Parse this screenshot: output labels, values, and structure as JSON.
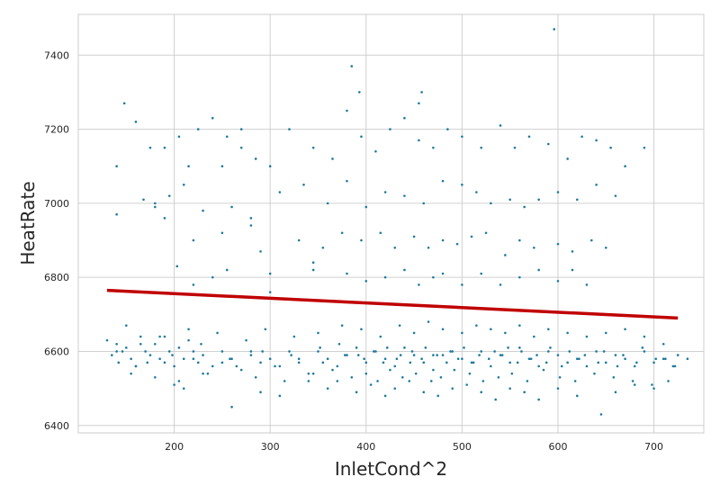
{
  "chart_data": {
    "type": "scatter",
    "title": "",
    "xlabel": "InletCond^2",
    "ylabel": "HeatRate",
    "xlim": [
      100,
      752
    ],
    "ylim": [
      6380,
      7510
    ],
    "xticks": [
      200,
      300,
      400,
      500,
      600,
      700
    ],
    "yticks": [
      6400,
      6600,
      6800,
      7000,
      7200,
      7400
    ],
    "grid": true,
    "background": "#eaeaf2",
    "colors": {
      "points": "#1d7a9e",
      "fit_line": "#c00000",
      "grid": "#d0d0d0",
      "frame": "#cccccc"
    },
    "series": [
      {
        "type": "scatter",
        "x": [
          130,
          135,
          140,
          142,
          146,
          150,
          155,
          160,
          165,
          170,
          175,
          180,
          185,
          190,
          195,
          200,
          205,
          210,
          215,
          220,
          225,
          230,
          240,
          250,
          260,
          270,
          280,
          290,
          300,
          310,
          320,
          330,
          340,
          350,
          360,
          370,
          380,
          390,
          400,
          410,
          420,
          430,
          440,
          450,
          460,
          470,
          480,
          490,
          500,
          510,
          520,
          530,
          540,
          550,
          560,
          570,
          580,
          590,
          600,
          610,
          620,
          630,
          640,
          650,
          660,
          670,
          680,
          690,
          700,
          710,
          720,
          725,
          148,
          160,
          175,
          190,
          205,
          215,
          225,
          240,
          255,
          270,
          285,
          300,
          320,
          345,
          365,
          380,
          395,
          410,
          425,
          440,
          455,
          470,
          485,
          500,
          520,
          540,
          555,
          570,
          590,
          610,
          625,
          640,
          655,
          670,
          690,
          180,
          195,
          210,
          230,
          260,
          280,
          310,
          335,
          360,
          380,
          400,
          420,
          440,
          460,
          480,
          500,
          515,
          530,
          550,
          565,
          580,
          600,
          620,
          640,
          660,
          190,
          220,
          250,
          290,
          330,
          355,
          375,
          395,
          415,
          430,
          450,
          465,
          480,
          495,
          510,
          525,
          545,
          560,
          575,
          600,
          615,
          635,
          650,
          203,
          220,
          240,
          255,
          300,
          345,
          380,
          400,
          420,
          440,
          455,
          470,
          480,
          500,
          520,
          540,
          560,
          580,
          600,
          615,
          630,
          385,
          393,
          458,
          455,
          596,
          140,
          168,
          250,
          280,
          180,
          140,
          270,
          300,
          345,
          200,
          210,
          230,
          260,
          290,
          310,
          340,
          360,
          370,
          390,
          405,
          420,
          430,
          445,
          460,
          475,
          490,
          505,
          520,
          535,
          550,
          565,
          580,
          600,
          620,
          645,
          660,
          680,
          700,
          715,
          150,
          165,
          185,
          215,
          245,
          275,
          295,
          325,
          350,
          375,
          395,
          415,
          435,
          450,
          465,
          480,
          500,
          515,
          530,
          545,
          560,
          575,
          590,
          610,
          630,
          650,
          670,
          690,
          710,
          735,
          155,
          180,
          205,
          235,
          265,
          285,
          315,
          345,
          365,
          385,
          400,
          412,
          425,
          438,
          452,
          468,
          478,
          492,
          508,
          522,
          538,
          552,
          568,
          585,
          602,
          618,
          638,
          658,
          678,
          698,
          140,
          172,
          198,
          228,
          258,
          292,
          322,
          352,
          372,
          392,
          408,
          422,
          436,
          448,
          462,
          474,
          488,
          502,
          518,
          534,
          548,
          562,
          578,
          592,
          612,
          628,
          648,
          668,
          688,
          712,
          160,
          190,
          220,
          250,
          280,
          305,
          330,
          355,
          378,
          398,
          418,
          432,
          446,
          458,
          470,
          484,
          496,
          512,
          528,
          542,
          558,
          572,
          588,
          604,
          622,
          642,
          662,
          682,
          702,
          722
        ],
        "y": [
          6630,
          6590,
          6620,
          6570,
          6600,
          6610,
          6580,
          6560,
          6640,
          6600,
          6590,
          6620,
          6580,
          6640,
          6600,
          6560,
          6610,
          6580,
          6630,
          6600,
          6570,
          6590,
          6560,
          6600,
          6580,
          6550,
          6600,
          6570,
          6580,
          6560,
          6600,
          6570,
          6540,
          6600,
          6580,
          6560,
          6590,
          6610,
          6570,
          6600,
          6580,
          6560,
          6610,
          6590,
          6570,
          6550,
          6590,
          6600,
          6580,
          6570,
          6600,
          6560,
          6590,
          6570,
          6610,
          6580,
          6560,
          6600,
          6590,
          6570,
          6580,
          6560,
          6600,
          6570,
          6590,
          6580,
          6560,
          6600,
          6570,
          6580,
          6560,
          6590,
          7270,
          7220,
          7150,
          7150,
          7180,
          7100,
          7200,
          7230,
          7180,
          7150,
          7120,
          7100,
          7200,
          7150,
          7120,
          7250,
          7180,
          7140,
          7200,
          7230,
          7170,
          7150,
          7200,
          7180,
          7150,
          7210,
          7150,
          7180,
          7160,
          7120,
          7180,
          7170,
          7150,
          7100,
          7150,
          7000,
          7020,
          7050,
          6980,
          6990,
          6960,
          7030,
          7050,
          7000,
          7060,
          6990,
          7030,
          7020,
          7000,
          7060,
          7050,
          7030,
          7000,
          7010,
          6990,
          7010,
          7030,
          7010,
          7050,
          7020,
          6960,
          6900,
          6920,
          6870,
          6900,
          6880,
          6920,
          6900,
          6920,
          6880,
          6910,
          6880,
          6900,
          6890,
          6910,
          6920,
          6860,
          6900,
          6880,
          6890,
          6870,
          6900,
          6880,
          6830,
          6780,
          6800,
          6820,
          6760,
          6820,
          6810,
          6790,
          6800,
          6820,
          6780,
          6800,
          6810,
          6780,
          6810,
          6780,
          6800,
          6820,
          6790,
          6820,
          6780,
          7370,
          7300,
          7300,
          7270,
          7470,
          6970,
          7010,
          7100,
          6940,
          6990,
          7100,
          7200,
          6810,
          6840,
          6510,
          6500,
          6540,
          6450,
          6490,
          6480,
          6520,
          6500,
          6520,
          6490,
          6510,
          6480,
          6500,
          6520,
          6490,
          6480,
          6500,
          6510,
          6490,
          6470,
          6500,
          6490,
          6470,
          6500,
          6480,
          6430,
          6490,
          6510,
          6500,
          6520,
          6670,
          6620,
          6640,
          6660,
          6650,
          6630,
          6660,
          6640,
          6650,
          6670,
          6660,
          6640,
          6670,
          6650,
          6680,
          6660,
          6650,
          6670,
          6660,
          6650,
          6670,
          6640,
          6660,
          6650,
          6640,
          6650,
          6660,
          6640,
          6620,
          6580,
          6540,
          6530,
          6520,
          6540,
          6560,
          6530,
          6520,
          6540,
          6550,
          6530,
          6540,
          6520,
          6550,
          6530,
          6540,
          6520,
          6530,
          6550,
          6540,
          6520,
          6530,
          6540,
          6520,
          6550,
          6530,
          6520,
          6540,
          6530,
          6520,
          6510,
          6600,
          6570,
          6590,
          6620,
          6580,
          6600,
          6590,
          6610,
          6620,
          6590,
          6600,
          6610,
          6590,
          6600,
          6610,
          6590,
          6600,
          6610,
          6590,
          6600,
          6610,
          6600,
          6590,
          6610,
          6600,
          6590,
          6600,
          6590,
          6610,
          6580,
          6560,
          6570,
          6580,
          6570,
          6590,
          6560,
          6580,
          6570,
          6590,
          6580,
          6570,
          6580,
          6570,
          6580,
          6590,
          6570,
          6580,
          6570,
          6580,
          6590,
          6570,
          6580,
          6570,
          6560,
          6580,
          6570,
          6560,
          6570,
          6580,
          6560
        ]
      },
      {
        "type": "line",
        "x": [
          130,
          725
        ],
        "y": [
          6765,
          6690
        ]
      }
    ]
  }
}
